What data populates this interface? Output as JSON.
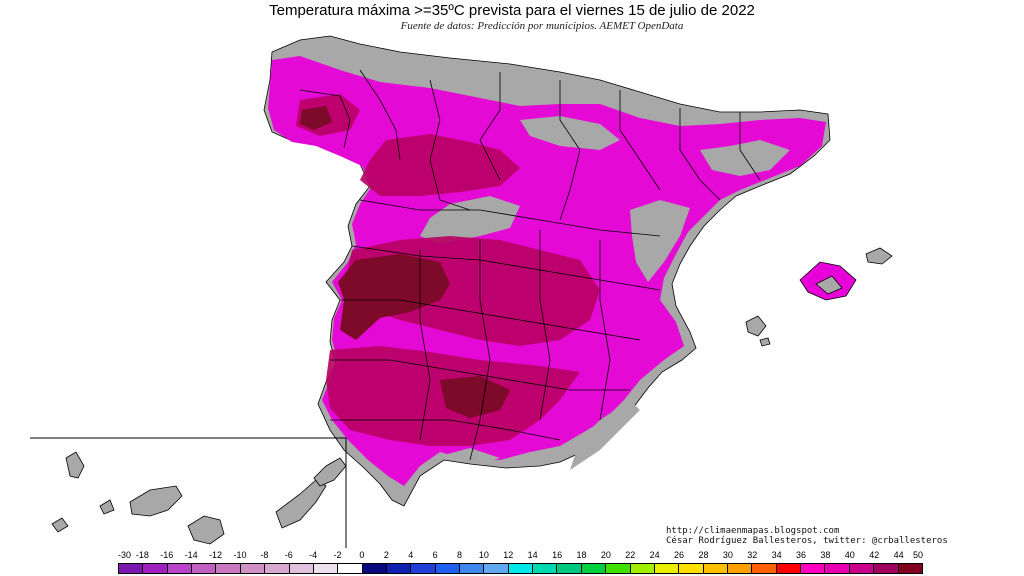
{
  "header": {
    "title": "Temperatura máxima >=35ºC prevista para el viernes 15 de julio de 2022",
    "source": "Fuente de datos: Predicción por municipios. AEMET OpenData"
  },
  "credits": {
    "url": "http://climaenmapas.blogspot.com",
    "author": "César Rodríguez Ballesteros, twitter: @crballesteros"
  },
  "map": {
    "region": "Spain",
    "colors": {
      "land_below_threshold": "#a8a8a8",
      "magenta_36_38": "#e800d8",
      "crimson_40_42": "#b80062",
      "dark_red_44_50": "#7d0a28",
      "borders": "#000000"
    }
  },
  "legend": {
    "labels": [
      "-30",
      "-18",
      "-16",
      "-14",
      "-12",
      "-10",
      "-8",
      "-6",
      "-4",
      "-2",
      "0",
      "2",
      "4",
      "6",
      "8",
      "10",
      "12",
      "14",
      "16",
      "18",
      "20",
      "22",
      "24",
      "26",
      "28",
      "30",
      "32",
      "34",
      "36",
      "38",
      "40",
      "42",
      "44",
      "50"
    ],
    "colors": [
      "#7a18b0",
      "#a020c0",
      "#b844c8",
      "#c060c0",
      "#c878c0",
      "#d090c8",
      "#d8a8d0",
      "#e0c0dc",
      "#ece0ec",
      "#ffffff",
      "#0a0a80",
      "#1020b0",
      "#2040d8",
      "#2060f0",
      "#4088f0",
      "#60a8f0",
      "#00e8e8",
      "#00d8b0",
      "#00c880",
      "#00d040",
      "#40e000",
      "#a0f000",
      "#e8f000",
      "#ffe000",
      "#ffc000",
      "#ffa000",
      "#ff6000",
      "#ff0000",
      "#ff00c0",
      "#e800b0",
      "#c8008c",
      "#a00060",
      "#800020"
    ]
  }
}
